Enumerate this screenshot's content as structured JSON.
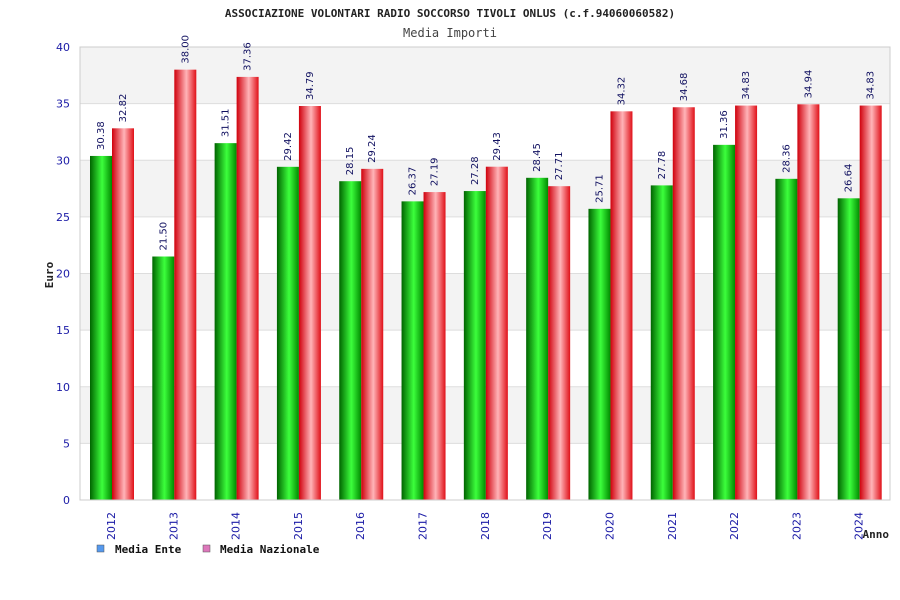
{
  "chart_data": {
    "type": "bar",
    "title": "ASSOCIAZIONE VOLONTARI RADIO SOCCORSO TIVOLI ONLUS (c.f.94060060582)",
    "subtitle": "Media Importi",
    "xlabel": "Anno",
    "ylabel": "Euro",
    "ylim": [
      0,
      40
    ],
    "yticks": [
      "0",
      "5",
      "10",
      "15",
      "20",
      "25",
      "30",
      "35",
      "40"
    ],
    "grid": true,
    "legend_position": "bottom-left",
    "categories": [
      "2012",
      "2013",
      "2014",
      "2015",
      "2016",
      "2017",
      "2018",
      "2019",
      "2020",
      "2021",
      "2022",
      "2023",
      "2024"
    ],
    "series": [
      {
        "name": "Media Ente",
        "color": "#00b000",
        "legend_color": "#5599ee",
        "values": [
          30.38,
          21.5,
          31.51,
          29.42,
          28.15,
          26.37,
          27.28,
          28.45,
          25.71,
          27.78,
          31.36,
          28.36,
          26.64
        ],
        "labels": [
          "30.38",
          "21.50",
          "31.51",
          "29.42",
          "28.15",
          "26.37",
          "27.28",
          "28.45",
          "25.71",
          "27.78",
          "31.36",
          "28.36",
          "26.64"
        ]
      },
      {
        "name": "Media Nazionale",
        "color": "#e8202a",
        "legend_color": "#dd77bb",
        "values": [
          32.82,
          38.0,
          37.36,
          34.79,
          29.24,
          27.19,
          29.43,
          27.71,
          34.32,
          34.68,
          34.83,
          34.94,
          34.83
        ],
        "labels": [
          "32.82",
          "38.00",
          "37.36",
          "34.79",
          "29.24",
          "27.19",
          "29.43",
          "27.71",
          "34.32",
          "34.68",
          "34.83",
          "34.94",
          "34.83"
        ]
      }
    ]
  }
}
